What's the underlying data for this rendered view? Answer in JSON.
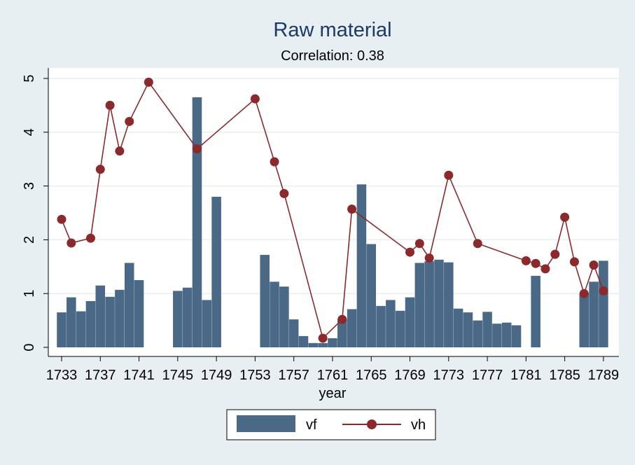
{
  "chart_data": {
    "type": "bar",
    "title": "Raw material",
    "subtitle": "Correlation: 0.38",
    "xlabel": "year",
    "ylabel": "",
    "xlim": [
      1732,
      1790
    ],
    "ylim": [
      0,
      5
    ],
    "x_ticks": [
      1733,
      1737,
      1741,
      1745,
      1749,
      1753,
      1757,
      1761,
      1765,
      1769,
      1773,
      1777,
      1781,
      1785,
      1789
    ],
    "y_ticks": [
      0,
      1,
      2,
      3,
      4,
      5
    ],
    "grid": true,
    "legend_position": "bottom",
    "series": [
      {
        "name": "vf",
        "type": "bar",
        "color": "#4a6987",
        "points": [
          [
            1733,
            0.65
          ],
          [
            1734,
            0.93
          ],
          [
            1735,
            0.67
          ],
          [
            1736,
            0.86
          ],
          [
            1737,
            1.15
          ],
          [
            1738,
            0.94
          ],
          [
            1739,
            1.07
          ],
          [
            1740,
            1.57
          ],
          [
            1741,
            1.25
          ],
          [
            1745,
            1.05
          ],
          [
            1746,
            1.11
          ],
          [
            1747,
            4.65
          ],
          [
            1748,
            0.88
          ],
          [
            1749,
            2.8
          ],
          [
            1754,
            1.72
          ],
          [
            1755,
            1.22
          ],
          [
            1756,
            1.13
          ],
          [
            1757,
            0.52
          ],
          [
            1758,
            0.21
          ],
          [
            1759,
            0.08
          ],
          [
            1760,
            0.08
          ],
          [
            1761,
            0.17
          ],
          [
            1762,
            0.52
          ],
          [
            1763,
            0.71
          ],
          [
            1764,
            3.03
          ],
          [
            1765,
            1.92
          ],
          [
            1766,
            0.77
          ],
          [
            1767,
            0.88
          ],
          [
            1768,
            0.68
          ],
          [
            1769,
            0.93
          ],
          [
            1770,
            1.57
          ],
          [
            1771,
            1.6
          ],
          [
            1772,
            1.63
          ],
          [
            1773,
            1.58
          ],
          [
            1774,
            0.72
          ],
          [
            1775,
            0.65
          ],
          [
            1776,
            0.5
          ],
          [
            1777,
            0.66
          ],
          [
            1778,
            0.44
          ],
          [
            1779,
            0.46
          ],
          [
            1780,
            0.41
          ],
          [
            1782,
            1.33
          ],
          [
            1787,
            1.01
          ],
          [
            1788,
            1.22
          ],
          [
            1789,
            1.61
          ]
        ]
      },
      {
        "name": "vh",
        "type": "line",
        "color": "#8b2a2d",
        "points": [
          [
            1733,
            2.38
          ],
          [
            1734,
            1.94
          ],
          [
            1736,
            2.03
          ],
          [
            1737,
            3.31
          ],
          [
            1738,
            4.5
          ],
          [
            1739,
            3.65
          ],
          [
            1740,
            4.2
          ],
          [
            1742,
            4.93
          ],
          [
            1747,
            3.69
          ],
          [
            1753,
            4.62
          ],
          [
            1755,
            3.45
          ],
          [
            1756,
            2.86
          ],
          [
            1760,
            0.17
          ],
          [
            1762,
            0.52
          ],
          [
            1763,
            2.57
          ],
          [
            1769,
            1.77
          ],
          [
            1770,
            1.93
          ],
          [
            1771,
            1.66
          ],
          [
            1773,
            3.2
          ],
          [
            1776,
            1.93
          ],
          [
            1781,
            1.61
          ],
          [
            1782,
            1.56
          ],
          [
            1783,
            1.46
          ],
          [
            1784,
            1.73
          ],
          [
            1785,
            2.42
          ],
          [
            1786,
            1.59
          ],
          [
            1787,
            1.0
          ],
          [
            1788,
            1.53
          ],
          [
            1789,
            1.05
          ]
        ]
      }
    ]
  }
}
